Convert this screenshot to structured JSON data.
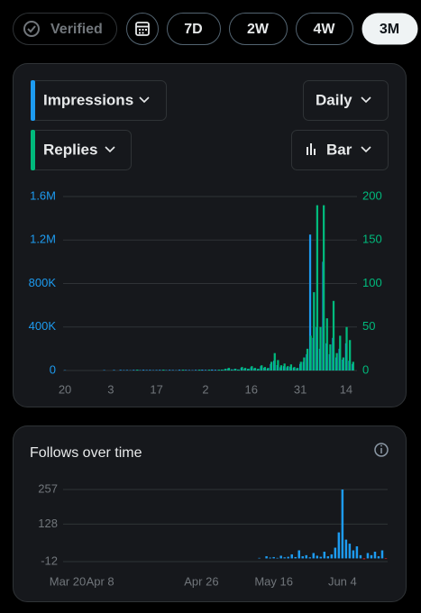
{
  "toolbar": {
    "verified": "Verified",
    "ranges": [
      "7D",
      "2W",
      "4W",
      "3M"
    ],
    "selected": "3M"
  },
  "controls": {
    "interval": "Daily",
    "style": "Bar"
  },
  "chart_data": [
    {
      "type": "bar",
      "categories": [
        null,
        null,
        "20",
        null,
        null,
        null,
        null,
        null,
        null,
        null,
        null,
        null,
        null,
        null,
        null,
        null,
        "3",
        null,
        null,
        null,
        null,
        null,
        null,
        null,
        null,
        null,
        null,
        null,
        null,
        null,
        "17",
        null,
        null,
        null,
        null,
        null,
        null,
        null,
        null,
        null,
        null,
        null,
        null,
        null,
        null,
        "2",
        null,
        null,
        null,
        null,
        null,
        null,
        null,
        null,
        null,
        null,
        null,
        null,
        null,
        "16",
        null,
        null,
        null,
        null,
        null,
        null,
        null,
        null,
        null,
        null,
        null,
        null,
        null,
        null,
        "31",
        null,
        null,
        null,
        null,
        null,
        null,
        null,
        null,
        null,
        null,
        null,
        null,
        null,
        "14",
        null,
        null
      ],
      "series": [
        {
          "name": "Impressions",
          "color": "#1d9bf0",
          "values": [
            0,
            0,
            3000,
            0,
            0,
            0,
            0,
            0,
            0,
            0,
            0,
            0,
            0,
            0,
            4000,
            0,
            0,
            5000,
            0,
            6000,
            4000,
            5000,
            3000,
            6000,
            5000,
            4000,
            7000,
            5000,
            6000,
            4000,
            5000,
            6000,
            5000,
            4000,
            6000,
            5000,
            3000,
            7000,
            5000,
            6000,
            5000,
            4000,
            6000,
            5000,
            8000,
            6000,
            5000,
            9000,
            7000,
            6000,
            8000,
            12000,
            20000,
            10000,
            15000,
            9000,
            25000,
            18000,
            14000,
            30000,
            20000,
            12000,
            40000,
            25000,
            18000,
            60000,
            90000,
            50000,
            30000,
            40000,
            30000,
            35000,
            25000,
            20000,
            60000,
            80000,
            150000,
            1250000,
            300000,
            400000,
            200000,
            1000000,
            250000,
            150000,
            300000,
            120000,
            200000,
            100000,
            250000,
            90000,
            60000
          ]
        },
        {
          "name": "Replies",
          "color": "#00ba7c",
          "axis": "y2",
          "values": [
            0,
            0,
            0,
            0,
            0,
            0,
            0,
            0,
            0,
            0,
            0,
            0,
            0,
            0,
            0,
            0,
            0,
            0,
            0,
            0,
            0,
            0,
            0,
            0,
            1,
            0,
            0,
            0,
            0,
            0,
            0,
            0,
            1,
            0,
            0,
            0,
            0,
            0,
            1,
            0,
            0,
            0,
            0,
            1,
            0,
            0,
            1,
            0,
            0,
            1,
            1,
            2,
            3,
            1,
            2,
            1,
            4,
            3,
            2,
            5,
            3,
            2,
            6,
            4,
            3,
            10,
            20,
            12,
            6,
            8,
            5,
            7,
            4,
            3,
            10,
            15,
            25,
            40,
            90,
            190,
            50,
            190,
            60,
            30,
            80,
            20,
            40,
            15,
            50,
            35,
            10
          ]
        }
      ],
      "ylim": [
        0,
        1600000
      ],
      "yticks": [
        0,
        {
          "value": 400000,
          "label": "400K"
        },
        {
          "value": 800000,
          "label": "800K"
        },
        {
          "value": 1200000,
          "label": "1.2M"
        },
        {
          "value": 1600000,
          "label": "1.6M"
        }
      ],
      "y2lim": [
        0,
        200
      ],
      "y2ticks": [
        0,
        50,
        100,
        150,
        200
      ],
      "grid": true
    },
    {
      "type": "bar",
      "title": "Follows over time",
      "categories": [
        null,
        null,
        "Mar 20",
        null,
        null,
        null,
        null,
        null,
        null,
        null,
        null,
        "Apr 8",
        null,
        null,
        null,
        null,
        null,
        null,
        null,
        null,
        null,
        null,
        null,
        null,
        null,
        null,
        null,
        null,
        null,
        null,
        null,
        null,
        null,
        null,
        null,
        null,
        null,
        null,
        null,
        "Apr 26",
        null,
        null,
        null,
        null,
        null,
        null,
        null,
        null,
        null,
        null,
        null,
        null,
        null,
        null,
        null,
        null,
        null,
        null,
        null,
        "May 16",
        null,
        null,
        null,
        null,
        null,
        null,
        null,
        null,
        null,
        null,
        null,
        null,
        null,
        null,
        null,
        null,
        null,
        null,
        "Jun 4",
        null,
        null,
        null,
        null,
        null,
        null,
        null,
        null,
        null,
        null,
        null,
        null
      ],
      "series": [
        {
          "name": "Follows",
          "color": "#1d9bf0",
          "values": [
            0,
            0,
            0,
            0,
            0,
            0,
            0,
            0,
            0,
            0,
            0,
            0,
            0,
            0,
            0,
            0,
            0,
            0,
            0,
            0,
            0,
            0,
            0,
            0,
            0,
            0,
            0,
            0,
            0,
            0,
            0,
            0,
            0,
            0,
            0,
            0,
            0,
            0,
            0,
            0,
            0,
            0,
            0,
            0,
            0,
            0,
            0,
            0,
            0,
            0,
            0,
            0,
            0,
            0,
            0,
            2,
            0,
            8,
            3,
            5,
            2,
            10,
            4,
            6,
            15,
            5,
            30,
            8,
            12,
            4,
            20,
            10,
            6,
            25,
            8,
            15,
            40,
            97,
            257,
            70,
            55,
            30,
            45,
            12,
            -3,
            20,
            12,
            25,
            8,
            30,
            -2
          ]
        }
      ],
      "negative_color": "#f4212e",
      "ylim": [
        -12,
        257
      ],
      "yticks": [
        -12,
        128,
        257
      ],
      "grid": true
    }
  ]
}
